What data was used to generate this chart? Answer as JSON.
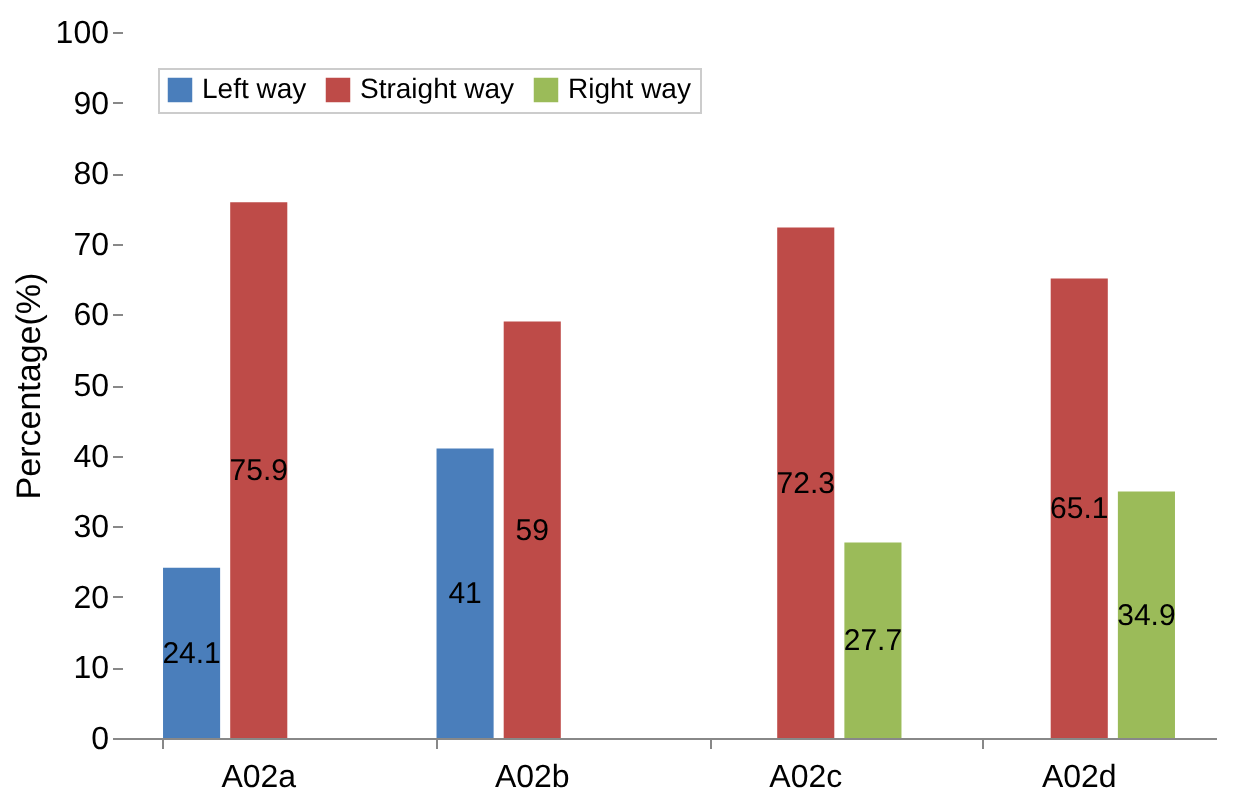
{
  "chart_data": {
    "type": "bar",
    "ylabel": "Percentage(%)",
    "categories": [
      "A02a",
      "A02b",
      "A02c",
      "A02d"
    ],
    "series": [
      {
        "name": "Left way",
        "color": "#4a7ebb",
        "values": [
          24.1,
          41,
          null,
          null
        ]
      },
      {
        "name": "Straight way",
        "color": "#be4b48",
        "values": [
          75.9,
          59,
          72.3,
          65.1
        ]
      },
      {
        "name": "Right way",
        "color": "#9bbb59",
        "values": [
          null,
          null,
          27.7,
          34.9
        ]
      }
    ],
    "ylim": [
      0,
      100
    ],
    "yticks": [
      0,
      10,
      20,
      30,
      40,
      50,
      60,
      70,
      80,
      90,
      100
    ],
    "grid": false,
    "legend": "top left",
    "data_labels": true
  }
}
